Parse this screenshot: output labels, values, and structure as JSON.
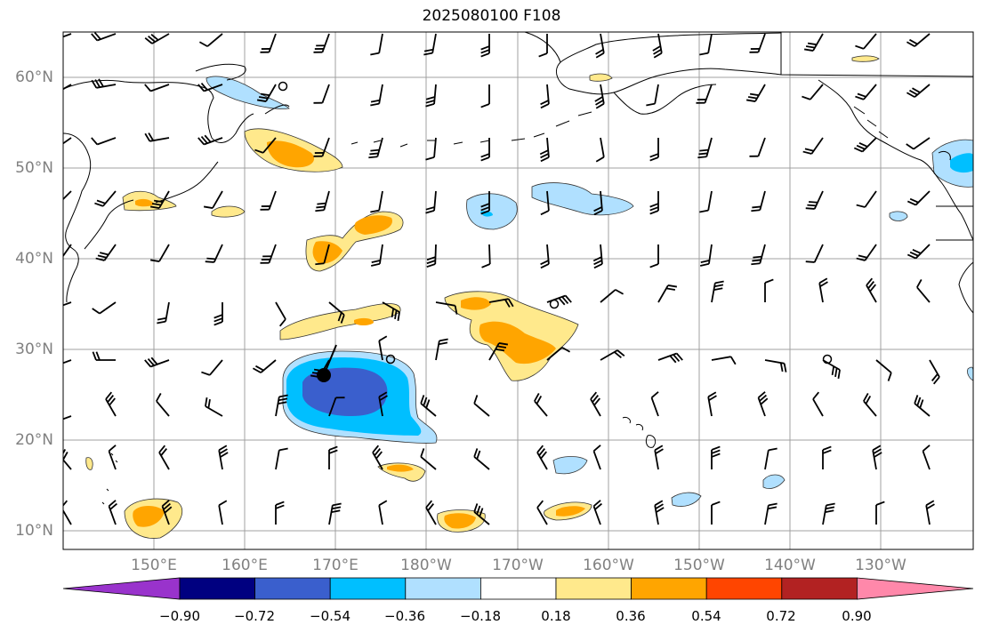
{
  "title": "2025080100 F108",
  "lat_labels": [
    "60°N",
    "50°N",
    "40°N",
    "30°N",
    "20°N",
    "10°N"
  ],
  "lon_labels": [
    "150°E",
    "160°E",
    "170°E",
    "180°W",
    "170°W",
    "160°W",
    "150°W",
    "140°W",
    "130°W"
  ],
  "colorbar": {
    "tick_labels": [
      "−0.90",
      "−0.72",
      "−0.54",
      "−0.36",
      "−0.18",
      "0.18",
      "0.36",
      "0.54",
      "0.72",
      "0.90"
    ],
    "colors": [
      "#9933cc",
      "#000080",
      "#3a5fcd",
      "#00bfff",
      "#b0e0ff",
      "#ffffff",
      "#ffe98c",
      "#ffa500",
      "#ff4500",
      "#b22222",
      "#ff88aa"
    ]
  },
  "shading_colors": {
    "weak_positive": "#ffe98c",
    "moderate_positive": "#ffa500",
    "weak_negative": "#b0e0ff",
    "moderate_negative": "#00bfff",
    "strong_negative": "#3a5fcd"
  },
  "icons": {
    "storm_center": "filled-circle-marker",
    "storm_track": "open-circle-marker",
    "wind": "wind-barb"
  }
}
